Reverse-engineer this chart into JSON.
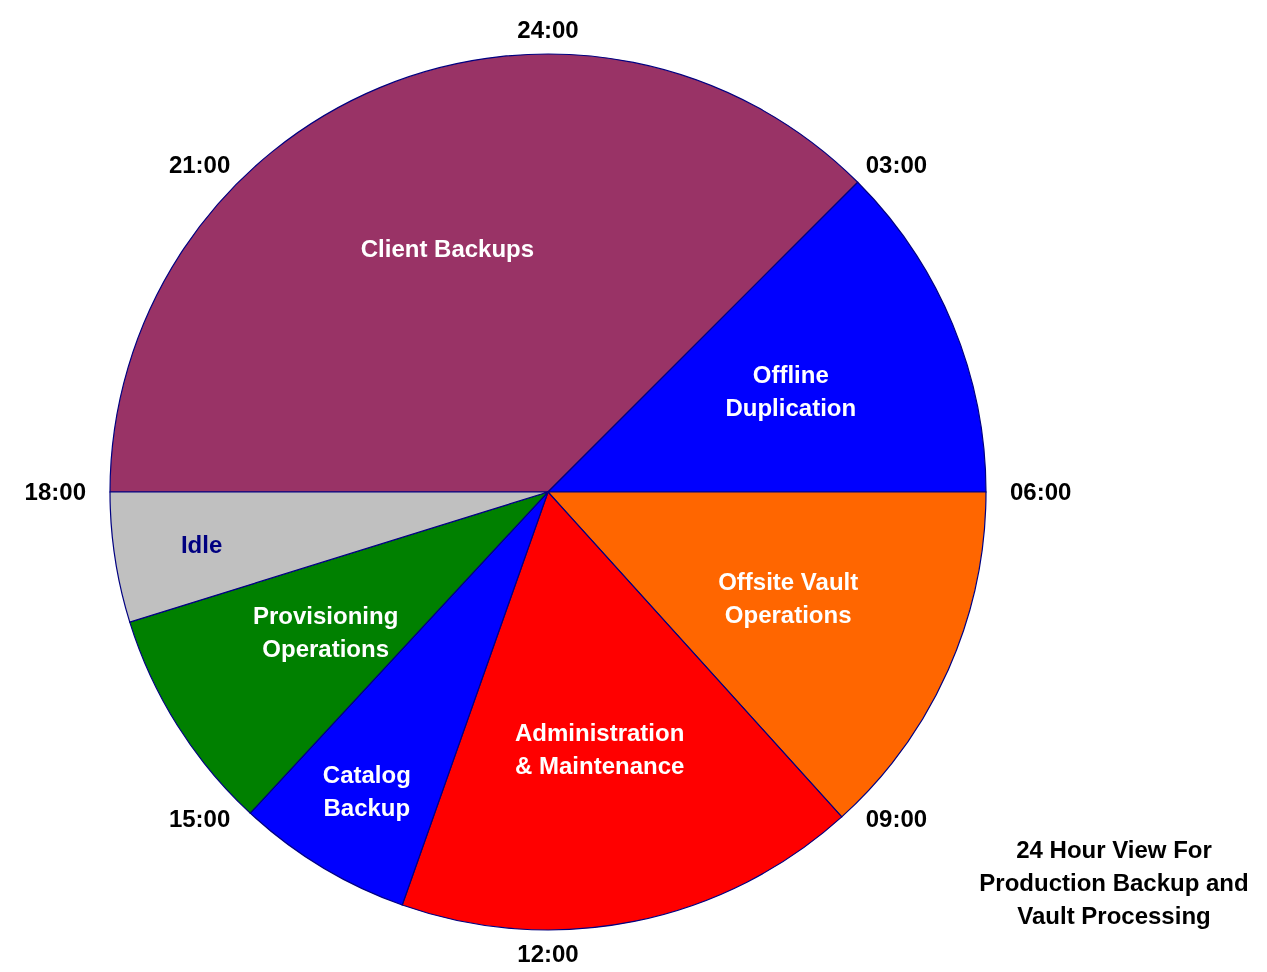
{
  "chart_data": {
    "type": "pie",
    "title": "24 Hour View For Production Backup and Vault Processing",
    "categories": [
      "Client Backups",
      "Offline Duplication",
      "Offsite Vault Operations",
      "Administration & Maintenance",
      "Catalog Backup",
      "Provisioning Operations",
      "Idle"
    ],
    "values": [
      37.5,
      12.5,
      13.3,
      17.1,
      6.5,
      8.3,
      4.8
    ],
    "colors": [
      "#993366",
      "#0000ff",
      "#ff6600",
      "#ff0000",
      "#0000ff",
      "#008000",
      "#c0c0c0"
    ],
    "annotations": [
      "24:00",
      "03:00",
      "06:00",
      "09:00",
      "12:00",
      "15:00",
      "18:00",
      "21:00"
    ],
    "legend": false
  }
}
